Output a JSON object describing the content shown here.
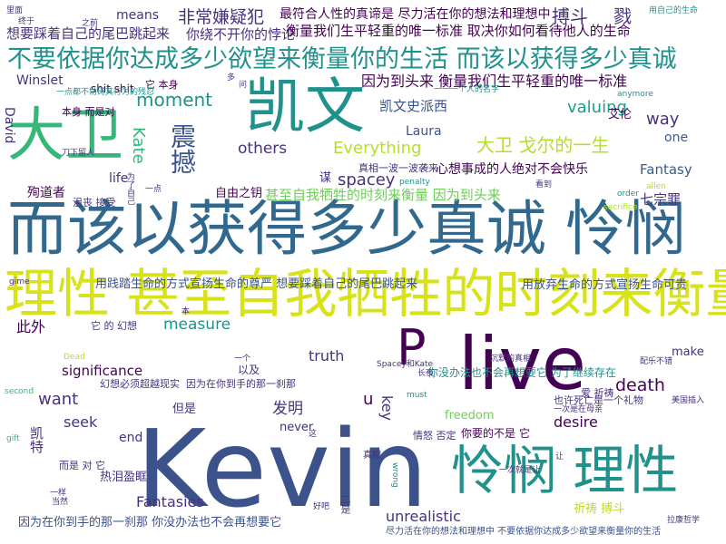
{
  "colors": {
    "dark_purple": "#440154",
    "indigo": "#3b528b",
    "slate_blue": "#46327e",
    "blue": "#365c8d",
    "steel": "#31688e",
    "teal": "#21918c",
    "green_teal": "#1f9e89",
    "mint": "#35b779",
    "lime": "#6ece58",
    "yellow_green": "#b5de2b",
    "yellow": "#fde725",
    "gold": "#d8e219"
  },
  "words": [
    {
      "text": "Kevin"
    },
    {
      "text": "live"
    },
    {
      "text": "而该以获得多少真诚 怜悯"
    },
    {
      "text": "理性 甚至自我牺牲的时刻来衡量"
    },
    {
      "text": "怜悯 理性"
    },
    {
      "text": "凯文"
    },
    {
      "text": "大卫"
    },
    {
      "text": "不要依据你达成多少欲望来衡量你的生活 而该以获得多少真诚"
    },
    {
      "text": "P"
    },
    {
      "text": "非常嫌疑犯"
    },
    {
      "text": "最符合人性的真谛是 尽力活在你的想法和理想中"
    },
    {
      "text": "搏斗"
    },
    {
      "text": "戮"
    },
    {
      "text": "想要踩着自己的尾巴跳起来"
    },
    {
      "text": "你绕不开你的悖论"
    },
    {
      "text": "衡量我们生平轻重的唯一标准 取决你如何看待他人的生命"
    },
    {
      "text": "因为到头来 衡量我们生平轻重的唯一标准"
    },
    {
      "text": "moment"
    },
    {
      "text": "valuing"
    },
    {
      "text": "way"
    },
    {
      "text": "凯文史派西"
    },
    {
      "text": "艾伦"
    },
    {
      "text": "Laura"
    },
    {
      "text": "one"
    },
    {
      "text": "大卫 戈尔的一生"
    },
    {
      "text": "others"
    },
    {
      "text": "Everything"
    },
    {
      "text": "心想事成的人绝对不会快乐"
    },
    {
      "text": "Fantasy"
    },
    {
      "text": "spacey"
    },
    {
      "text": "震撼"
    },
    {
      "text": "Kate"
    },
    {
      "text": "Winslet"
    },
    {
      "text": "David"
    },
    {
      "text": "殉道者"
    },
    {
      "text": "自由之钥"
    },
    {
      "text": "甚至自我牺牲的时刻来衡量 因为到头来"
    },
    {
      "text": "七宗罪"
    },
    {
      "text": "life"
    },
    {
      "text": "shit shit"
    },
    {
      "text": "means"
    },
    {
      "text": "用践踏生命的方式宣扬生命的尊严 想要踩着自己的尾巴跳起来"
    },
    {
      "text": "用放弃生命的方式宣扬生命可贵"
    },
    {
      "text": "此外"
    },
    {
      "text": "measure"
    },
    {
      "text": "truth"
    },
    {
      "text": "make"
    },
    {
      "text": "significance"
    },
    {
      "text": "以及"
    },
    {
      "text": "want"
    },
    {
      "text": "你没办法也不会再想要它 为了继续存在"
    },
    {
      "text": "death"
    },
    {
      "text": "幻想必须超越现实"
    },
    {
      "text": "因为在你到手的那一刹那"
    },
    {
      "text": "u"
    },
    {
      "text": "key"
    },
    {
      "text": "爱 祈祷"
    },
    {
      "text": "seek"
    },
    {
      "text": "发明"
    },
    {
      "text": "但是"
    },
    {
      "text": "freedom"
    },
    {
      "text": "desire"
    },
    {
      "text": "end"
    },
    {
      "text": "never"
    },
    {
      "text": "你要的不是 它"
    },
    {
      "text": "热泪盈眶"
    },
    {
      "text": "Fantasies"
    },
    {
      "text": "unrealistic"
    },
    {
      "text": "祈祷 搏斗"
    },
    {
      "text": "因为在你到手的那一刹那 你没办法也不会再想要它"
    },
    {
      "text": "尽力活在你的想法和理想中 不要依据你达成多少欲望来衡量你的生活"
    },
    {
      "text": "凯特"
    },
    {
      "text": "而是 对 它"
    },
    {
      "text": "真相"
    },
    {
      "text": "二是"
    },
    {
      "text": "情怒 否定"
    },
    {
      "text": "沮丧 接受"
    },
    {
      "text": "也许死亡是一个礼物"
    },
    {
      "text": "它 本身"
    },
    {
      "text": "本身 而是对"
    },
    {
      "text": "真相一波一波袭来"
    },
    {
      "text": "谋"
    },
    {
      "text": "Spacey和Kate"
    },
    {
      "text": "一点都不妨碍其行为的残忍"
    },
    {
      "text": "用自己的生命"
    },
    {
      "text": "一一一个人的名字"
    },
    {
      "text": "Dead"
    },
    {
      "text": "它 的 幻想"
    },
    {
      "text": "second"
    },
    {
      "text": "gift"
    },
    {
      "text": "anymore"
    },
    {
      "text": "order"
    },
    {
      "text": "sacrifice"
    },
    {
      "text": "penalty"
    },
    {
      "text": "wrong"
    },
    {
      "text": "must"
    },
    {
      "text": "gime"
    },
    {
      "text": "allen"
    },
    {
      "text": "拉康哲学"
    },
    {
      "text": "美国插入"
    },
    {
      "text": "配乐不错"
    },
    {
      "text": "沉默的真相"
    },
    {
      "text": "一次是在母亲"
    },
    {
      "text": "里面"
    },
    {
      "text": "终于"
    },
    {
      "text": "之前"
    },
    {
      "text": "为了自己"
    },
    {
      "text": "刀下留人"
    },
    {
      "text": "一次就是让"
    },
    {
      "text": "一样"
    },
    {
      "text": "多"
    },
    {
      "text": "本"
    },
    {
      "text": "当然"
    },
    {
      "text": "好吧"
    },
    {
      "text": "长夜"
    },
    {
      "text": "一点"
    },
    {
      "text": "看到"
    },
    {
      "text": "一个"
    },
    {
      "text": "问"
    },
    {
      "text": "这"
    },
    {
      "text": "让"
    },
    {
      "text": "完全"
    }
  ]
}
